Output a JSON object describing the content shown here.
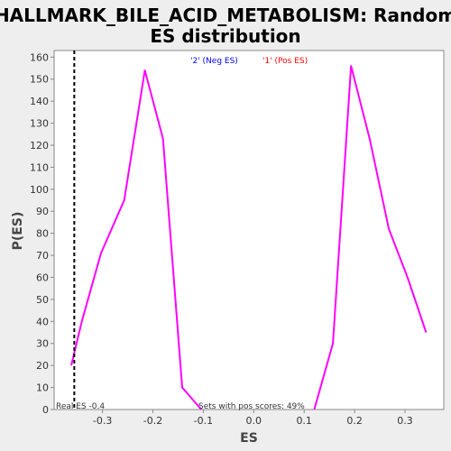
{
  "chart_data": {
    "type": "line",
    "title": "HALLMARK_BILE_ACID_METABOLISM: Random ES distribution",
    "title_lines": [
      "HALLMARK_BILE_ACID_METABOLISM: Random",
      "ES distribution"
    ],
    "xlabel": "ES",
    "ylabel": "P(ES)",
    "xlim": [
      -0.396,
      0.377
    ],
    "ylim": [
      0,
      163
    ],
    "x_ticks": [
      -0.3,
      -0.2,
      -0.1,
      0.0,
      0.1,
      0.2,
      0.3
    ],
    "x_tick_labels": [
      "-0.3",
      "-0.2",
      "-0.1",
      "0.0",
      "0.1",
      "0.2",
      "0.3"
    ],
    "y_ticks": [
      0,
      10,
      20,
      30,
      40,
      50,
      60,
      70,
      80,
      90,
      100,
      110,
      120,
      130,
      140,
      150,
      160
    ],
    "y_tick_labels": [
      "0",
      "10",
      "20",
      "30",
      "40",
      "50",
      "60",
      "70",
      "80",
      "90",
      "100",
      "110",
      "120",
      "130",
      "140",
      "150",
      "160"
    ],
    "grid": false,
    "legend_position": "top-center",
    "series": [
      {
        "name": "'2' (Neg ES)",
        "legend_color": "#0000ff",
        "color": "#ff00ff",
        "x": [
          -0.362,
          -0.341,
          -0.303,
          -0.257,
          -0.216,
          -0.18,
          -0.142,
          -0.104
        ],
        "y": [
          20,
          40,
          71,
          95,
          154,
          123,
          10,
          0
        ]
      },
      {
        "name": "'1' (Pos ES)",
        "legend_color": "#ff0000",
        "color": "#ff00ff",
        "x": [
          0.12,
          0.157,
          0.193,
          0.23,
          0.268,
          0.305,
          0.342
        ],
        "y": [
          0,
          30,
          156,
          123,
          82,
          60,
          35
        ]
      }
    ],
    "real_es": {
      "value": -0.356,
      "label": "Real ES -0.4",
      "line_style": "dashed",
      "color": "#000000"
    },
    "annotation": "Sets with pos scores: 49%"
  }
}
